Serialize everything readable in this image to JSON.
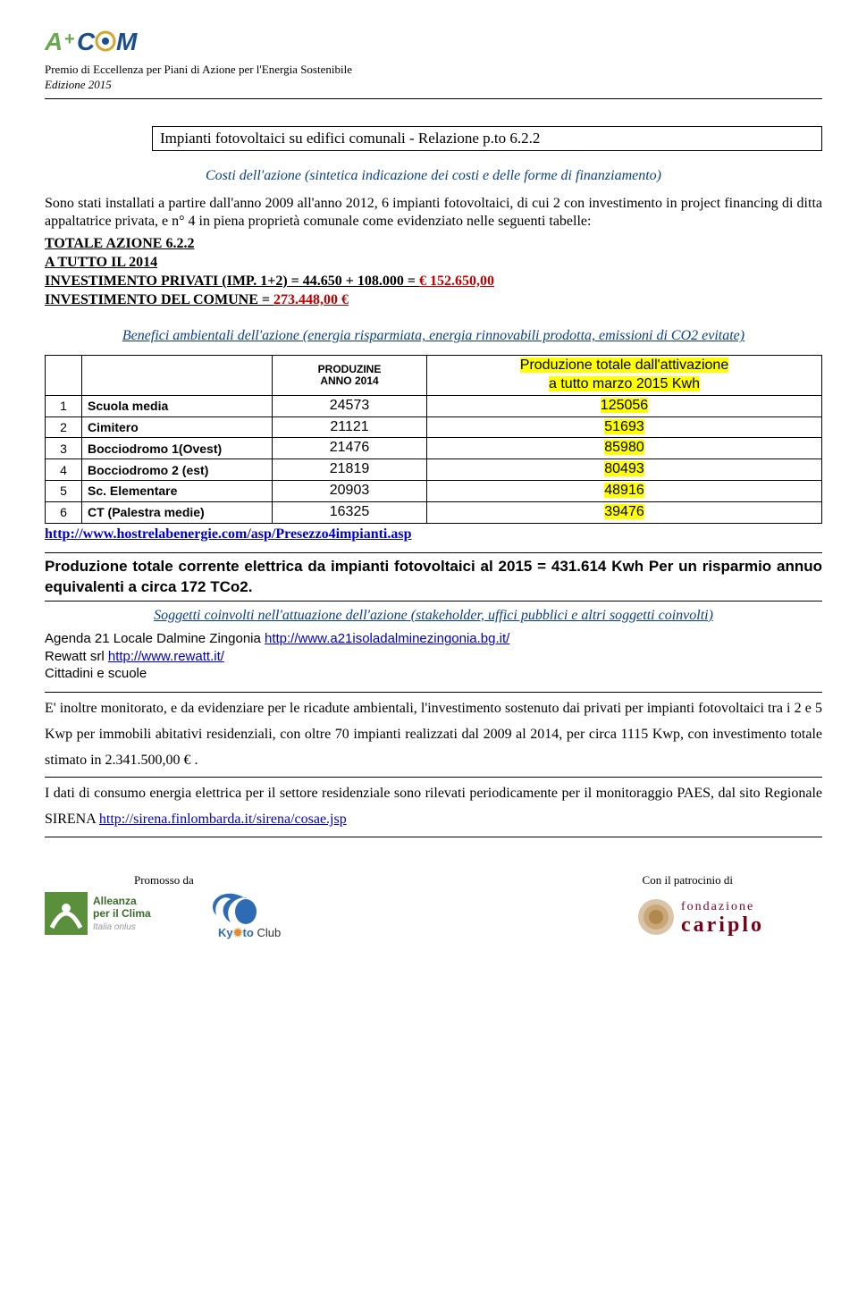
{
  "header": {
    "line1": "Premio di Eccellenza per Piani di Azione per l'Energia Sostenibile",
    "line2": "Edizione 2015"
  },
  "title_box": "Impianti fotovoltaici su edifici comunali - Relazione p.to 6.2.2",
  "section_costs_head": "Costi dell'azione (sintetica indicazione dei costi e delle forme di finanziamento)",
  "para1a": "Sono stati installati a partire dall'anno 2009 all'anno 2012, 6 impianti fotovoltaici, di cui 2 con investimento in project financing di ditta appaltatrice privata, e n° 4 in piena proprietà comunale come evidenziato nelle seguenti tabelle:",
  "totale_azione": "TOTALE AZIONE 6.2.2",
  "a_tutto": "A TUTTO IL 2014",
  "inv_priv_label": "INVESTIMENTO PRIVATI (IMP. 1+2) = 44.650 + 108.000 = ",
  "inv_priv_val": "€  152.650,00",
  "inv_com_label": "INVESTIMENTO DEL COMUNE = ",
  "inv_com_val": " 273.448,00 €",
  "section_benefits_head": "Benefici ambientali dell'azione (energia risparmiata, energia rinnovabili prodotta, emissioni di CO2 evitate)",
  "table": {
    "headers": {
      "col3a": "PRODUZINE",
      "col3b": "ANNO 2014",
      "col4a": "Produzione totale dall'attivazione",
      "col4b": "a tutto marzo 2015 Kwh"
    },
    "rows": [
      {
        "n": "1",
        "label": "Scuola media",
        "p2014": "24573",
        "ptot": "125056"
      },
      {
        "n": "2",
        "label": "Cimitero",
        "p2014": "21121",
        "ptot": "51693"
      },
      {
        "n": "3",
        "label": "Bocciodromo 1(Ovest)",
        "p2014": "21476",
        "ptot": "85980"
      },
      {
        "n": "4",
        "label": "Bocciodromo 2 (est)",
        "p2014": "21819",
        "ptot": "80493"
      },
      {
        "n": "5",
        "label": "Sc. Elementare",
        "p2014": "20903",
        "ptot": "48916"
      },
      {
        "n": "6",
        "label": "CT (Palestra medie)",
        "p2014": "16325",
        "ptot": "39476"
      }
    ]
  },
  "link_hostrela": "http://www.hostrelabenergie.com/asp/Presezzo4impianti.asp",
  "prod_totale_line": "Produzione totale corrente elettrica da impianti fotovoltaici al 2015 = 431.614 Kwh Per un risparmio annuo equivalenti a circa 172 TCo2.",
  "section_soggetti_head": "Soggetti coinvolti nell'attuazione dell'azione (stakeholder, uffici pubblici e altri soggetti coinvolti)",
  "agenda21_pre": "Agenda 21 Locale Dalmine Zingonia ",
  "agenda21_link": "http://www.a21isoladalminezingonia.bg.it/",
  "rewatt_pre": "Rewatt srl ",
  "rewatt_link": "http://www.rewatt.it/",
  "cittadini": "Cittadini e scuole",
  "bottom_para1": "E' inoltre monitorato, e da evidenziare per le ricadute ambientali, l'investimento sostenuto dai privati per impianti fotovoltaici tra i 2 e 5 Kwp per immobili abitativi residenziali, con oltre 70 impianti realizzati dal 2009 al 2014, per circa 1115 Kwp, con investimento totale stimato in  2.341.500,00 € .",
  "bottom_para2_pre": "I dati di consumo energia elettrica per il settore residenziale sono rilevati periodicamente per il monitoraggio PAES, dal sito Regionale SIRENA ",
  "sirena_link": "http://sirena.finlombarda.it/sirena/cosae.jsp",
  "footer": {
    "promosso": "Promosso da",
    "patrocinio": "Con il patrocinio di"
  },
  "colors": {
    "section_head": "#0a3e8a",
    "red": "#c00000",
    "highlight": "#ffff00",
    "link": "#0000cc"
  }
}
